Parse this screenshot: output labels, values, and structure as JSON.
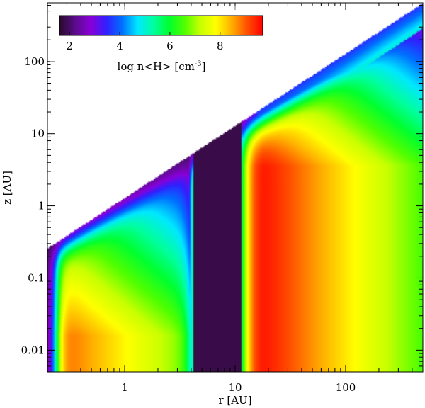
{
  "chart_data": {
    "type": "heatmap",
    "title": "",
    "xlabel": "r [AU]",
    "ylabel": "z [AU]",
    "xscale": "log",
    "yscale": "log",
    "xlim": [
      0.2,
      500
    ],
    "ylim": [
      0.005,
      650
    ],
    "xticks": [
      {
        "value": 1,
        "label": "1"
      },
      {
        "value": 10,
        "label": "10"
      },
      {
        "value": 100,
        "label": "100"
      }
    ],
    "yticks": [
      {
        "value": 0.01,
        "label": "0.01"
      },
      {
        "value": 0.1,
        "label": "0.1"
      },
      {
        "value": 1,
        "label": "1"
      },
      {
        "value": 10,
        "label": "10"
      },
      {
        "value": 100,
        "label": "100"
      }
    ],
    "colorbar": {
      "label_prefix": "log n<H> [cm",
      "label_exp": "-3",
      "label_suffix": "]",
      "range": [
        1.6,
        9.7
      ],
      "ticks": [
        {
          "value": 2,
          "label": "2"
        },
        {
          "value": 4,
          "label": "4"
        },
        {
          "value": 6,
          "label": "6"
        },
        {
          "value": 8,
          "label": "8"
        }
      ],
      "colormap": [
        "#2a0a2a",
        "#5a0c8a",
        "#8a00d8",
        "#3020ff",
        "#0070ff",
        "#00e8ff",
        "#00ffa0",
        "#00ff30",
        "#50ff00",
        "#c8ff00",
        "#ffff00",
        "#ffb000",
        "#ff5000",
        "#ff0000"
      ],
      "position": "top-left"
    },
    "model": {
      "inner_disk_r": [
        0.2,
        4.2
      ],
      "gap_r": [
        4.2,
        11.5
      ],
      "outer_disk_r": [
        11.5,
        500
      ],
      "surface_z_over_r": 1.28,
      "outer_disk_peak_log_n": 9.6,
      "inner_disk_peak_log_n": 9.0,
      "background_log_n": 1.8
    }
  }
}
